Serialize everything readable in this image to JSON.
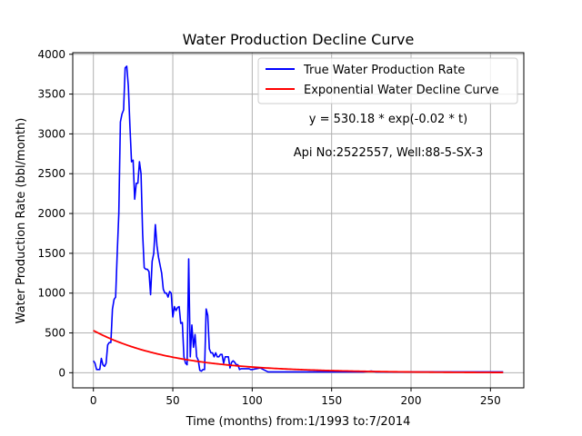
{
  "colors": {
    "true_series": "#0000ff",
    "fit_series": "#ff0000",
    "grid": "#b0b0b0",
    "axes": "#000000"
  },
  "chart_data": {
    "type": "line",
    "title": "Water Production Decline Curve",
    "xlabel": "Time (months) from:1/1993 to:7/2014",
    "ylabel": "Water Production Rate (bbl/month)",
    "xlim": [
      -13,
      271
    ],
    "ylim": [
      -190,
      4020
    ],
    "grid": true,
    "legend_placement": "top-right",
    "x_ticks": [
      0,
      50,
      100,
      150,
      200,
      250
    ],
    "y_ticks": [
      0,
      500,
      1000,
      1500,
      2000,
      2500,
      3000,
      3500,
      4000
    ],
    "annotations": [
      "y = 530.18 * exp(-0.02 * t)",
      "Api No:2522557, Well:88-5-SX-3"
    ],
    "series": [
      {
        "name": "True Water Production Rate",
        "color": "#0000ff",
        "x": [
          0,
          1,
          2,
          3,
          4,
          5,
          6,
          7,
          8,
          9,
          10,
          11,
          12,
          13,
          14,
          15,
          16,
          17,
          18,
          19,
          20,
          21,
          22,
          23,
          24,
          25,
          26,
          27,
          28,
          29,
          30,
          31,
          32,
          33,
          34,
          35,
          36,
          37,
          38,
          39,
          40,
          41,
          42,
          43,
          44,
          45,
          46,
          47,
          48,
          49,
          50,
          51,
          52,
          53,
          54,
          55,
          56,
          57,
          58,
          59,
          60,
          61,
          62,
          63,
          64,
          65,
          66,
          67,
          68,
          69,
          70,
          71,
          72,
          73,
          74,
          75,
          76,
          77,
          78,
          79,
          80,
          81,
          82,
          83,
          84,
          85,
          86,
          87,
          88,
          89,
          90,
          91,
          92,
          93,
          94,
          95,
          96,
          97,
          98,
          99,
          100,
          105,
          110,
          115,
          120,
          125,
          130,
          135,
          140,
          145,
          150,
          160,
          170,
          175,
          178,
          180,
          190,
          200,
          210,
          220,
          230,
          240,
          250,
          258
        ],
        "values": [
          150,
          120,
          40,
          40,
          40,
          180,
          100,
          80,
          120,
          350,
          380,
          380,
          800,
          920,
          950,
          1500,
          2000,
          3150,
          3250,
          3300,
          3830,
          3850,
          3600,
          3100,
          2650,
          2670,
          2180,
          2380,
          2380,
          2650,
          2500,
          1750,
          1320,
          1300,
          1300,
          1270,
          980,
          1400,
          1500,
          1860,
          1600,
          1450,
          1350,
          1250,
          1050,
          1000,
          1000,
          950,
          1020,
          1000,
          700,
          830,
          780,
          820,
          830,
          620,
          630,
          200,
          120,
          100,
          1430,
          200,
          600,
          320,
          480,
          200,
          160,
          30,
          20,
          40,
          40,
          800,
          720,
          300,
          250,
          250,
          200,
          250,
          200,
          200,
          230,
          230,
          120,
          200,
          200,
          200,
          60,
          130,
          150,
          130,
          100,
          100,
          40,
          50,
          50,
          50,
          50,
          50,
          50,
          40,
          40,
          60,
          10,
          10,
          10,
          10,
          10,
          10,
          10,
          10,
          10,
          10,
          10,
          20,
          10,
          10,
          10,
          10,
          10,
          10,
          10,
          10,
          10,
          10
        ]
      },
      {
        "name": "Exponential Water Decline Curve",
        "color": "#ff0000",
        "equation": {
          "a": 530.18,
          "b": -0.02
        },
        "x_range": [
          0,
          258
        ]
      }
    ]
  }
}
